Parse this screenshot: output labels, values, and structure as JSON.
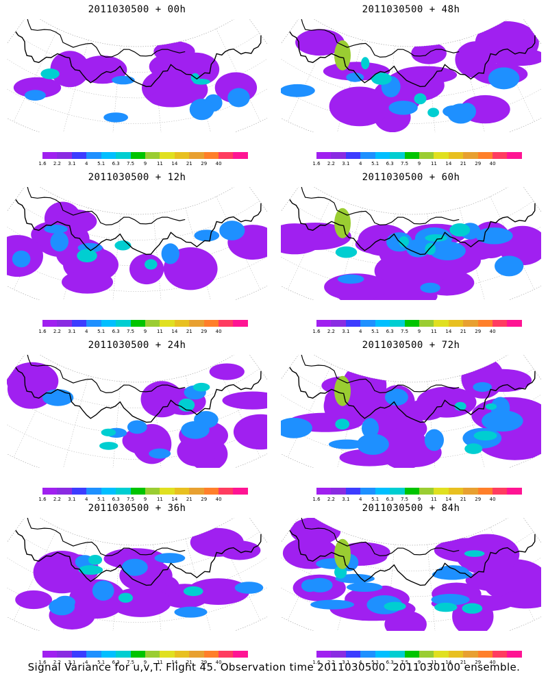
{
  "panels": [
    {
      "title": "2011030500 + 00h",
      "coverage": 0.25
    },
    {
      "title": "2011030500 + 48h",
      "coverage": 0.55
    },
    {
      "title": "2011030500 + 12h",
      "coverage": 0.35
    },
    {
      "title": "2011030500 + 60h",
      "coverage": 0.65
    },
    {
      "title": "2011030500 + 24h",
      "coverage": 0.45
    },
    {
      "title": "2011030500 + 72h",
      "coverage": 0.75
    },
    {
      "title": "2011030500 + 36h",
      "coverage": 0.5
    },
    {
      "title": "2011030500 + 84h",
      "coverage": 0.85
    }
  ],
  "colorbar": {
    "colors": [
      "#a020f0",
      "#8a2be2",
      "#3c3cff",
      "#1e90ff",
      "#00bfff",
      "#00ced1",
      "#00c400",
      "#9acd32",
      "#e0e020",
      "#e8c020",
      "#e8a030",
      "#ff7f2a",
      "#ff3c60",
      "#ff1493"
    ],
    "labels": [
      "1.6",
      "2.2",
      "3.1",
      "4",
      "5.1",
      "6.3",
      "7.5",
      "9",
      "11",
      "14",
      "21",
      "29",
      "40"
    ]
  },
  "footer": "Signal Variance for u,v,T. Flight 45. Observation time 2011030500. 2011030100 ensemble."
}
